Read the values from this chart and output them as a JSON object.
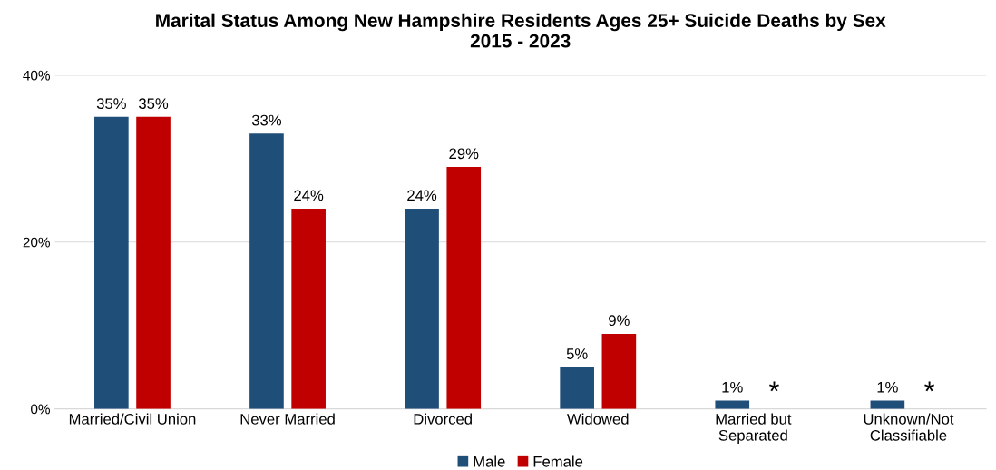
{
  "chart_data": {
    "type": "bar",
    "title": "Marital Status Among New Hampshire Residents Ages 25+ Suicide Deaths by Sex\n2015 - 2023",
    "categories": [
      "Married/Civil Union",
      "Never Married",
      "Divorced",
      "Widowed",
      "Married but\nSeparated",
      "Unknown/Not\nClassifiable"
    ],
    "series": [
      {
        "name": "Male",
        "color": "#1f4e79",
        "values": [
          35,
          33,
          24,
          5,
          1,
          1
        ],
        "value_labels": [
          "35%",
          "33%",
          "24%",
          "5%",
          "1%",
          "1%"
        ]
      },
      {
        "name": "Female",
        "color": "#c00000",
        "values": [
          35,
          24,
          29,
          9,
          null,
          null
        ],
        "value_labels": [
          "35%",
          "24%",
          "29%",
          "9%",
          "*",
          "*"
        ]
      }
    ],
    "ylim": [
      0,
      40
    ],
    "yticks": [
      {
        "value": 0,
        "label": "0%"
      },
      {
        "value": 20,
        "label": "20%"
      },
      {
        "value": 40,
        "label": "40%"
      }
    ],
    "grid": "y",
    "legend": "bottom"
  }
}
